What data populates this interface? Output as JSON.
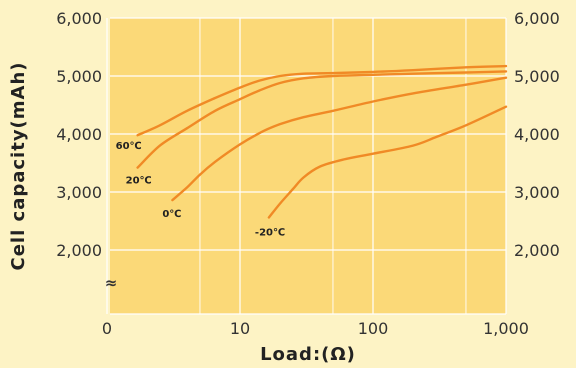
{
  "chart_data": {
    "type": "line",
    "xlabel": "Load:(Ω)",
    "ylabel": "Cell capacity(mAh)",
    "x_scale": "log",
    "x_ticks": [
      "0",
      "10",
      "100",
      "1,000"
    ],
    "y_ticks": [
      "2,000",
      "3,000",
      "4,000",
      "5,000",
      "6,000"
    ],
    "right_y_ticks": [
      "2,000",
      "3,000",
      "4,000",
      "5,000",
      "6,000"
    ],
    "ylim": [
      1000,
      6000
    ],
    "axis_break_symbol": "≈",
    "grid": true,
    "series": [
      {
        "name": "60℃",
        "x": [
          1.7,
          2.5,
          4,
          6.5,
          10,
          14,
          20,
          30,
          50,
          100,
          200,
          500,
          1000
        ],
        "y": [
          3980,
          4150,
          4400,
          4620,
          4800,
          4920,
          5000,
          5040,
          5050,
          5070,
          5100,
          5150,
          5170
        ]
      },
      {
        "name": "20℃",
        "x": [
          1.7,
          2.5,
          4,
          6.5,
          10,
          14,
          20,
          30,
          50,
          100,
          200,
          500,
          1000
        ],
        "y": [
          3420,
          3800,
          4100,
          4400,
          4600,
          4750,
          4880,
          4960,
          5000,
          5020,
          5040,
          5060,
          5080
        ]
      },
      {
        "name": "0℃",
        "x": [
          3.1,
          4,
          5,
          6.5,
          10,
          15,
          20,
          30,
          50,
          100,
          200,
          500,
          1000
        ],
        "y": [
          2860,
          3080,
          3300,
          3520,
          3820,
          4050,
          4170,
          4290,
          4400,
          4560,
          4700,
          4850,
          4970
        ]
      },
      {
        "name": "-20℃",
        "x": [
          16.5,
          20,
          25,
          30,
          40,
          60,
          100,
          200,
          300,
          500,
          1000
        ],
        "y": [
          2560,
          2800,
          3050,
          3250,
          3440,
          3560,
          3660,
          3800,
          3950,
          4150,
          4470
        ]
      }
    ]
  }
}
